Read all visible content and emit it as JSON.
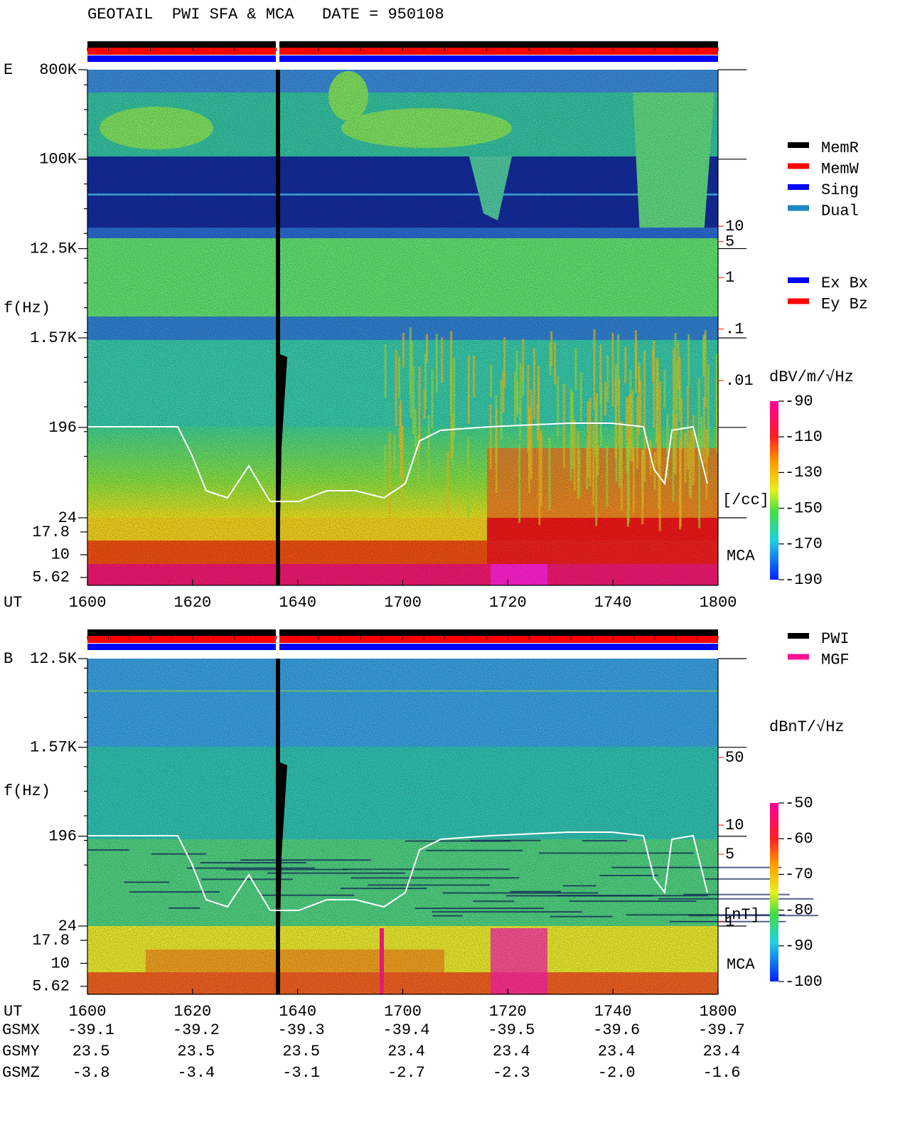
{
  "title": "GEOTAIL  PWI SFA & MCA   DATE = 950108",
  "chart_data": [
    {
      "type": "spectrogram",
      "component": "E",
      "ylabel": "f(Hz)",
      "xlabel": "UT",
      "yscale": "log",
      "ylim": [
        24,
        800000
      ],
      "yticks": [
        {
          "value": 800000,
          "label": "800K"
        },
        {
          "value": 100000,
          "label": "100K"
        },
        {
          "value": 12500,
          "label": "12.5K"
        },
        {
          "value": 1570,
          "label": "1.57K"
        },
        196,
        24
      ],
      "mca_label": "MCA",
      "mca_ylim": [
        4.6,
        25.5
      ],
      "mca_ticks": [
        17.8,
        10,
        5.62
      ],
      "xticks": [
        "1600",
        "1620",
        "1640",
        "1700",
        "1720",
        "1740",
        "1800"
      ],
      "colorbar": {
        "label": "dBV/m/√Hz",
        "lim": [
          -190,
          -90
        ],
        "ticks": [
          -90,
          -110,
          -130,
          -150,
          -170,
          -190
        ]
      },
      "density_axis": {
        "label": "[/cc]",
        "color": "#ff0000",
        "lim": [
          0.01,
          10
        ],
        "ticks": [
          10,
          5,
          1,
          {
            "value": 0.1,
            "label": ".1"
          },
          {
            "value": 0.01,
            "label": ".01"
          }
        ]
      },
      "legends": [
        [
          {
            "name": "MemR",
            "color": "#000000"
          },
          {
            "name": "MemW",
            "color": "#ff0000"
          },
          {
            "name": "Sing",
            "color": "#0000ff"
          },
          {
            "name": "Dual",
            "color": "#1e88c8"
          }
        ],
        [
          {
            "name": "Ex Bx",
            "color": "#0000ff"
          },
          {
            "name": "Ey Bz",
            "color": "#ff0000"
          }
        ]
      ]
    },
    {
      "type": "spectrogram",
      "component": "B",
      "ylabel": "f(Hz)",
      "xlabel": "UT",
      "yscale": "log",
      "ylim": [
        24,
        12500
      ],
      "yticks": [
        {
          "value": 12500,
          "label": "12.5K"
        },
        {
          "value": 1570,
          "label": "1.57K"
        },
        196,
        24
      ],
      "mca_label": "MCA",
      "mca_ylim": [
        4.6,
        25.5
      ],
      "mca_ticks": [
        17.8,
        10,
        5.62
      ],
      "xticks": [
        "1600",
        "1620",
        "1640",
        "1700",
        "1720",
        "1740",
        "1800"
      ],
      "colorbar": {
        "label": "dBnT/√Hz",
        "lim": [
          -100,
          -50
        ],
        "ticks": [
          -50,
          -60,
          -70,
          -80,
          -90,
          -100
        ]
      },
      "density_axis": {
        "label": "[nT]",
        "color": "#ff0000",
        "lim": [
          1,
          50
        ],
        "ticks": [
          50,
          10,
          5,
          1
        ]
      },
      "legends": [
        [
          {
            "name": "PWI",
            "color": "#000000"
          },
          {
            "name": "MGF",
            "color": "#ff1493"
          }
        ]
      ]
    }
  ],
  "ephemeris": {
    "rows": [
      {
        "label": "GSMX",
        "values": [
          "-39.1",
          "-39.2",
          "-39.3",
          "-39.4",
          "-39.5",
          "-39.6",
          "-39.7"
        ]
      },
      {
        "label": "GSMY",
        "values": [
          "23.5",
          "23.5",
          "23.5",
          "23.4",
          "23.4",
          "23.4",
          "23.4"
        ]
      },
      {
        "label": "GSMZ",
        "values": [
          "-3.8",
          "-3.4",
          "-3.1",
          "-2.7",
          "-2.3",
          "-2.0",
          "-1.6"
        ]
      }
    ]
  }
}
